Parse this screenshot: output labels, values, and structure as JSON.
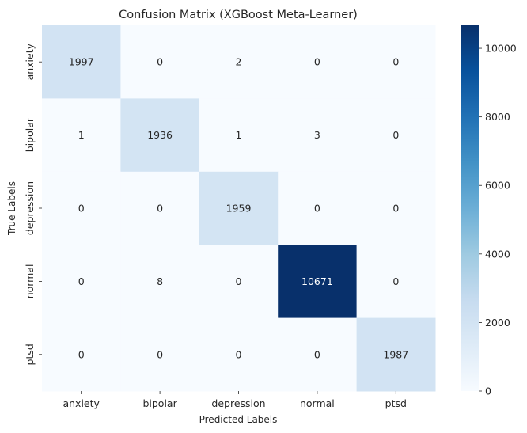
{
  "chart_data": {
    "type": "heatmap",
    "title": "Confusion Matrix (XGBoost Meta-Learner)",
    "xlabel": "Predicted Labels",
    "ylabel": "True Labels",
    "x_categories": [
      "anxiety",
      "bipolar",
      "depression",
      "normal",
      "ptsd"
    ],
    "y_categories": [
      "anxiety",
      "bipolar",
      "depression",
      "normal",
      "ptsd"
    ],
    "values": [
      [
        1997,
        0,
        2,
        0,
        0
      ],
      [
        1,
        1936,
        1,
        3,
        0
      ],
      [
        0,
        0,
        1959,
        0,
        0
      ],
      [
        0,
        8,
        0,
        10671,
        0
      ],
      [
        0,
        0,
        0,
        0,
        1987
      ]
    ],
    "colorbar": {
      "min": 0,
      "max": 10671,
      "ticks": [
        0,
        2000,
        4000,
        6000,
        8000,
        10000
      ],
      "colormap": "Blues",
      "low_color": "#f7fbff",
      "high_color": "#08306b"
    }
  }
}
